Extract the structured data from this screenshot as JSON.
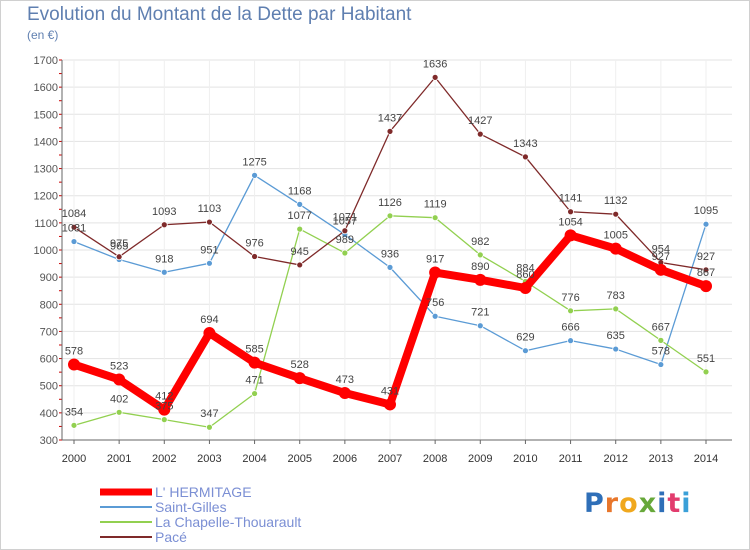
{
  "page": {
    "title": "Evolution du Montant de la Dette par Habitant",
    "subtitle": "(en €)",
    "logo_text": "Proxiti"
  },
  "chart_data": {
    "type": "line",
    "title": "Evolution du Montant de la Dette par Habitant",
    "subtitle": "(en €)",
    "xlabel": "",
    "ylabel": "",
    "categories": [
      "2000",
      "2001",
      "2002",
      "2003",
      "2004",
      "2005",
      "2006",
      "2007",
      "2008",
      "2009",
      "2010",
      "2011",
      "2012",
      "2013",
      "2014"
    ],
    "ylim": [
      300,
      1700
    ],
    "yticks": [
      300,
      400,
      500,
      600,
      700,
      800,
      900,
      1000,
      1100,
      1200,
      1300,
      1400,
      1500,
      1600,
      1700
    ],
    "grid": "horizontal",
    "legend_position": "bottom-left",
    "series": [
      {
        "name": "L' HERMITAGE",
        "color": "#ff0000",
        "values": [
          578,
          523,
          412,
          694,
          585,
          528,
          473,
          431,
          917,
          890,
          860,
          1054,
          1005,
          927,
          867
        ]
      },
      {
        "name": "Saint-Gilles",
        "color": "#5b9bd5",
        "values": [
          1031,
          965,
          918,
          951,
          1275,
          1168,
          1057,
          936,
          756,
          721,
          629,
          666,
          635,
          578,
          1095
        ]
      },
      {
        "name": "La Chapelle-Thouarault",
        "color": "#92d050",
        "values": [
          354,
          402,
          375,
          347,
          471,
          1077,
          989,
          1126,
          1119,
          982,
          884,
          776,
          783,
          667,
          551
        ]
      },
      {
        "name": "Pacé",
        "color": "#7f2a2a",
        "values": [
          1084,
          975,
          1093,
          1103,
          976,
          945,
          1071,
          1437,
          1636,
          1427,
          1343,
          1141,
          1132,
          954,
          927
        ]
      }
    ]
  },
  "colors": {
    "title": "#5f7fb0",
    "axis": "#555555",
    "grid": "#dddddd",
    "legend_text": "#7b8fd4"
  }
}
